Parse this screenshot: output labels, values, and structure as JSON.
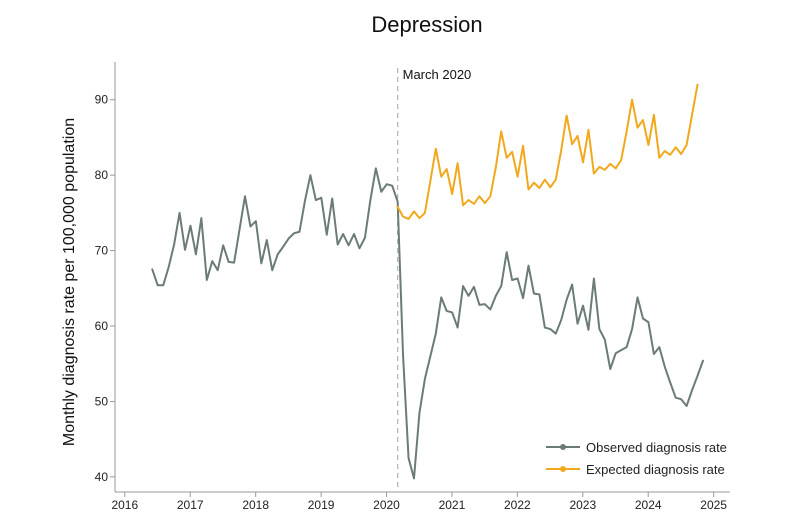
{
  "chart_data": {
    "type": "line",
    "title": "Depression",
    "xlabel": "",
    "ylabel": "Monthly diagnosis rate per 100,000 population",
    "xlim": [
      2015.85,
      2025.25
    ],
    "ylim": [
      38,
      95
    ],
    "x_ticks": [
      2016,
      2017,
      2018,
      2019,
      2020,
      2021,
      2022,
      2023,
      2024,
      2025
    ],
    "y_ticks": [
      40,
      50,
      60,
      70,
      80,
      90
    ],
    "annotation": {
      "x": 2020.17,
      "label": "March 2020"
    },
    "legend_position": "bottom-right",
    "series": [
      {
        "name": "Observed diagnosis rate",
        "color": "#6b7b76",
        "x_start": 2016.42,
        "x_step": 0.0833333,
        "values": [
          67.5,
          65.4,
          65.4,
          67.8,
          70.8,
          75.0,
          70.1,
          73.3,
          69.5,
          74.3,
          66.1,
          68.6,
          67.4,
          70.7,
          68.5,
          68.4,
          72.8,
          77.2,
          73.2,
          73.9,
          68.3,
          71.4,
          67.4,
          69.5,
          70.5,
          71.6,
          72.3,
          72.5,
          76.6,
          80.0,
          76.7,
          77.0,
          72.1,
          76.9,
          70.8,
          72.2,
          70.7,
          72.2,
          70.3,
          71.7,
          76.7,
          80.9,
          77.8,
          78.8,
          78.6,
          76.5,
          56.0,
          42.5,
          39.8,
          48.5,
          53.0,
          56.0,
          59.0,
          63.8,
          62.0,
          61.8,
          59.8,
          65.3,
          64.0,
          65.2,
          62.8,
          62.9,
          62.2,
          64.0,
          65.3,
          69.8,
          66.1,
          66.3,
          63.7,
          68.0,
          64.3,
          64.2,
          59.8,
          59.6,
          59.0,
          60.8,
          63.5,
          65.5,
          60.3,
          62.7,
          59.5,
          66.3,
          59.6,
          58.2,
          54.3,
          56.4,
          56.8,
          57.2,
          59.6,
          63.8,
          61.0,
          60.5,
          56.3,
          57.2,
          54.6,
          52.5,
          50.5,
          50.3,
          49.4,
          51.5,
          53.4,
          55.4
        ]
      },
      {
        "name": "Expected diagnosis rate",
        "color": "#f2a81d",
        "x_start": 2020.17,
        "x_step": 0.0833333,
        "values": [
          75.8,
          74.5,
          74.2,
          75.2,
          74.3,
          75.0,
          79.2,
          83.5,
          79.8,
          80.8,
          77.5,
          81.6,
          76.0,
          76.7,
          76.2,
          77.2,
          76.3,
          77.2,
          81.0,
          85.8,
          82.3,
          83.1,
          79.8,
          83.9,
          78.1,
          79.0,
          78.3,
          79.4,
          78.4,
          79.4,
          83.3,
          87.9,
          84.1,
          85.2,
          81.7,
          86.0,
          80.2,
          81.1,
          80.7,
          81.5,
          80.9,
          82.0,
          85.8,
          90.0,
          86.3,
          87.3,
          84.0,
          88.0,
          82.3,
          83.2,
          82.7,
          83.7,
          82.8,
          84.0,
          88.0,
          92.0
        ]
      }
    ]
  }
}
